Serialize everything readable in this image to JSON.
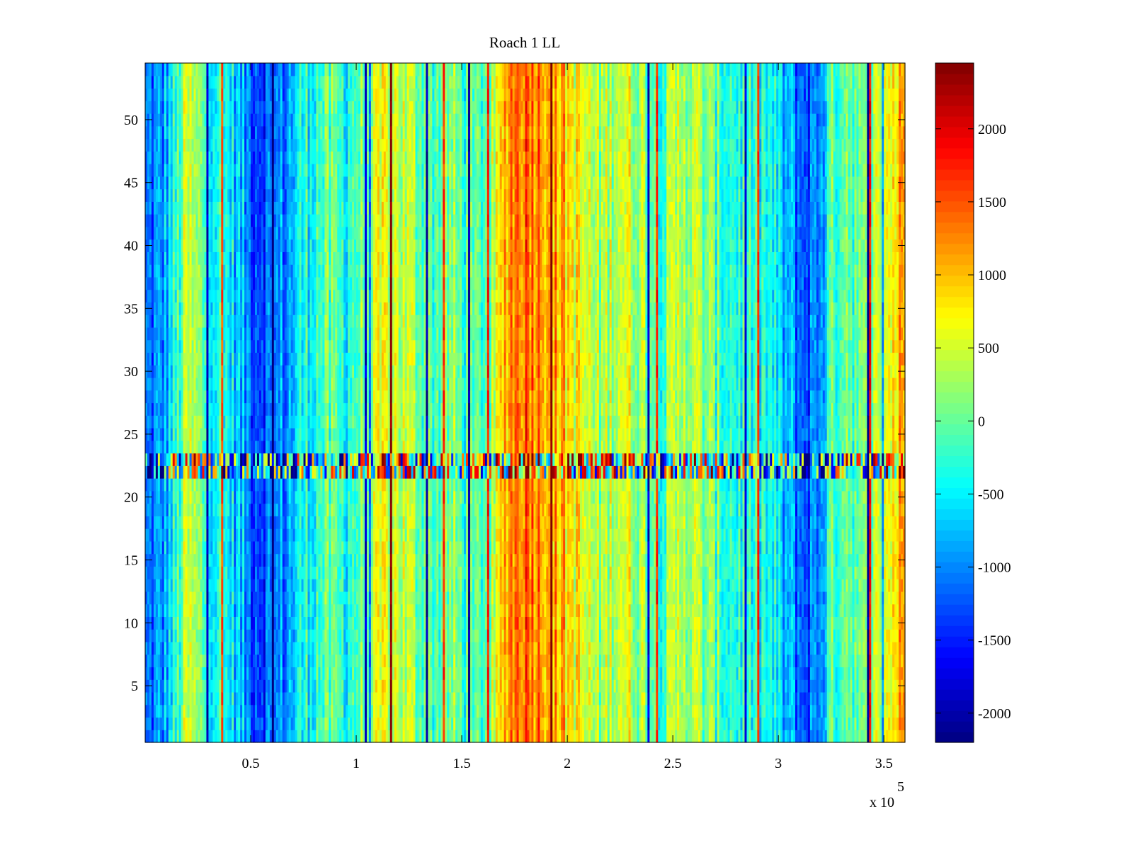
{
  "chart_data": {
    "type": "heatmap",
    "title": "Roach 1 LL",
    "xlabel": "",
    "ylabel": "",
    "x_scale_label": "x 10",
    "x_scale_exponent": "5",
    "xlim": [
      0,
      3.6
    ],
    "ylim": [
      0.5,
      54.5
    ],
    "x_ticks": [
      0.5,
      1,
      1.5,
      2,
      2.5,
      3,
      3.5
    ],
    "x_tick_labels": [
      "0.5",
      "1",
      "1.5",
      "2",
      "2.5",
      "3",
      "3.5"
    ],
    "y_ticks": [
      5,
      10,
      15,
      20,
      25,
      30,
      35,
      40,
      45,
      50
    ],
    "y_tick_labels": [
      "5",
      "10",
      "15",
      "20",
      "25",
      "30",
      "35",
      "40",
      "45",
      "50"
    ],
    "n_rows": 54,
    "noisy_rows": [
      22,
      23
    ],
    "colorbar": {
      "colormap": "jet",
      "clim": [
        -2200,
        2450
      ],
      "ticks": [
        -2000,
        -1500,
        -1000,
        -500,
        0,
        500,
        1000,
        1500,
        2000
      ],
      "tick_labels": [
        "-2000",
        "-1500",
        "-1000",
        "-500",
        "0",
        "500",
        "1000",
        "1500",
        "2000"
      ]
    },
    "column_profile": {
      "description_units": "x in units of 10^5, value in colorbar units (approximate column means)",
      "x": [
        0.0,
        0.08,
        0.15,
        0.2,
        0.3,
        0.4,
        0.5,
        0.6,
        0.68,
        0.75,
        0.85,
        0.95,
        1.05,
        1.15,
        1.25,
        1.35,
        1.45,
        1.55,
        1.65,
        1.72,
        1.8,
        1.9,
        2.0,
        2.08,
        2.15,
        2.25,
        2.35,
        2.45,
        2.55,
        2.65,
        2.75,
        2.85,
        2.95,
        3.05,
        3.12,
        3.18,
        3.25,
        3.32,
        3.4,
        3.5,
        3.6
      ],
      "values": [
        -1200,
        -1000,
        -300,
        400,
        -200,
        -500,
        -1100,
        -1200,
        -900,
        -400,
        -100,
        -300,
        100,
        600,
        300,
        -100,
        100,
        -300,
        200,
        1300,
        1500,
        1300,
        900,
        500,
        200,
        600,
        300,
        -100,
        500,
        100,
        -200,
        -300,
        -400,
        -900,
        -1200,
        -1100,
        -200,
        200,
        -200,
        600,
        1100
      ]
    }
  }
}
